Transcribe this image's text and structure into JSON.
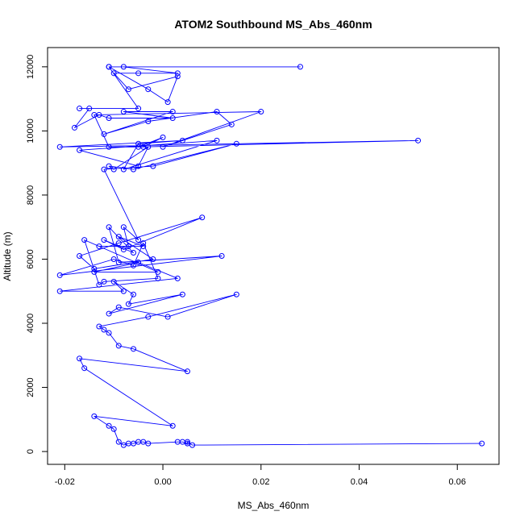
{
  "chart_data": {
    "type": "line",
    "title": "ATOM2 Southbound MS_Abs_460nm",
    "xlabel": "MS_Abs_460nm",
    "ylabel": "Altitude (m)",
    "xlim": [
      -0.0235,
      0.0685
    ],
    "ylim": [
      -400,
      12600
    ],
    "x_ticks": [
      -0.02,
      0.0,
      0.02,
      0.04,
      0.06
    ],
    "x_tick_labels": [
      "-0.02",
      "0.00",
      "0.02",
      "0.04",
      "0.06"
    ],
    "y_ticks": [
      0,
      2000,
      4000,
      6000,
      8000,
      10000,
      12000
    ],
    "y_tick_labels": [
      "0",
      "2000",
      "4000",
      "6000",
      "8000",
      "10000",
      "12000"
    ],
    "series_color": "#0000ff",
    "series": [
      {
        "x": [
          -0.011,
          0.028,
          -0.008,
          0.003,
          -0.005,
          -0.01,
          -0.007,
          0.003,
          0.001,
          -0.003,
          -0.011,
          -0.005,
          -0.017,
          -0.015,
          -0.018,
          -0.013,
          -0.011,
          0.002,
          -0.008,
          0.002,
          -0.012,
          -0.003,
          0.011,
          0.014,
          0.0,
          0.02,
          -0.014,
          -0.011,
          -0.004,
          0.0,
          -0.005,
          0.052,
          -0.021,
          0.004,
          -0.005,
          -0.008,
          0.011,
          -0.017,
          -0.005,
          -0.003,
          -0.01,
          -0.011,
          -0.006,
          0.015,
          -0.002,
          -0.012,
          -0.005,
          -0.008,
          -0.007,
          -0.013,
          -0.004,
          -0.009,
          -0.002,
          -0.014,
          -0.017,
          -0.009,
          0.008,
          -0.008,
          -0.012,
          -0.006,
          -0.011,
          -0.009,
          0.012,
          -0.021,
          -0.01,
          -0.006,
          -0.004,
          -0.001,
          -0.012,
          -0.013,
          -0.016,
          -0.001,
          -0.014,
          -0.005,
          0.003,
          -0.021,
          -0.008,
          -0.01,
          -0.006,
          -0.007,
          0.004,
          -0.011,
          -0.009,
          0.001,
          0.015,
          -0.003,
          -0.013,
          -0.012,
          -0.011,
          -0.009,
          -0.006,
          0.005,
          -0.017,
          -0.016,
          0.002,
          -0.014,
          -0.011,
          -0.01,
          -0.009,
          -0.008,
          -0.007,
          -0.006,
          -0.005,
          -0.004,
          -0.003,
          0.003,
          0.004,
          0.005,
          0.005,
          0.006,
          0.065
        ],
        "y": [
          12000,
          12000,
          12000,
          11800,
          11800,
          11800,
          11300,
          11700,
          10900,
          11300,
          12000,
          10700,
          10700,
          10700,
          10100,
          10500,
          10400,
          10400,
          10600,
          10600,
          9900,
          10300,
          10600,
          10200,
          9500,
          10600,
          10500,
          9500,
          9500,
          9800,
          9500,
          9700,
          9500,
          9700,
          9600,
          8800,
          9700,
          9400,
          8900,
          9500,
          8800,
          8900,
          8800,
          9600,
          8900,
          8800,
          6600,
          7000,
          6400,
          6400,
          6400,
          6700,
          6000,
          5700,
          6100,
          6500,
          7300,
          6300,
          6600,
          6200,
          7000,
          5900,
          6100,
          5500,
          6000,
          5800,
          6500,
          5400,
          5300,
          5200,
          6600,
          5600,
          5600,
          5900,
          5400,
          5000,
          5000,
          5300,
          4900,
          4600,
          4900,
          4300,
          4500,
          4200,
          4900,
          4200,
          3900,
          3800,
          3700,
          3300,
          3200,
          2500,
          2900,
          2600,
          800,
          1100,
          800,
          700,
          300,
          200,
          250,
          250,
          300,
          300,
          250,
          300,
          300,
          250,
          300,
          200,
          250
        ]
      }
    ]
  }
}
